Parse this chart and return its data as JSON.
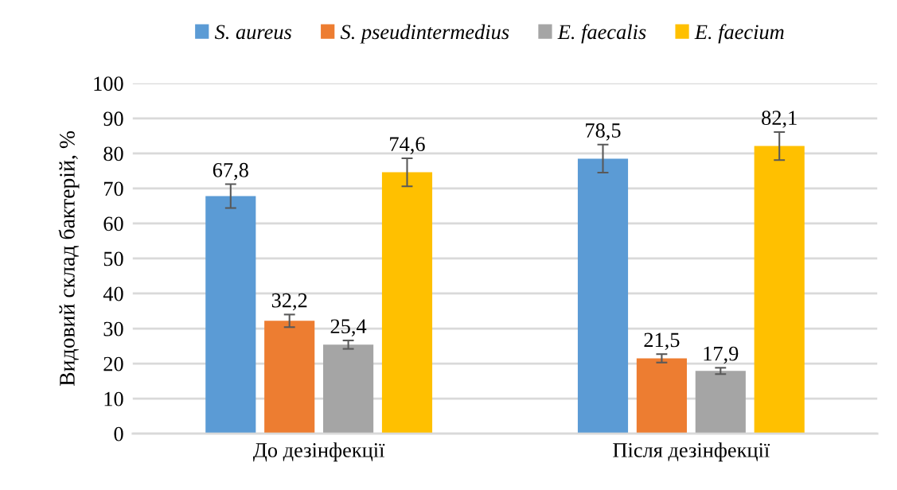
{
  "chart_data": {
    "type": "bar",
    "ylabel": "Видовий склад бактерій, %",
    "categories": [
      "До дезінфекції",
      "Після дезінфекції"
    ],
    "series": [
      {
        "name": "S. aureus",
        "color": "#5b9bd5",
        "values": [
          67.8,
          78.5
        ],
        "errors": [
          3.4,
          4
        ],
        "value_labels": [
          "67,8",
          "78,5"
        ]
      },
      {
        "name": "S. pseudintermedius",
        "color": "#ed7d31",
        "values": [
          32.2,
          21.5
        ],
        "errors": [
          1.8,
          1.2
        ],
        "value_labels": [
          "32,2",
          "21,5"
        ]
      },
      {
        "name": "E. faecalis",
        "color": "#a5a5a5",
        "values": [
          25.4,
          17.9
        ],
        "errors": [
          1.2,
          0.9
        ],
        "value_labels": [
          "25,4",
          "17,9"
        ]
      },
      {
        "name": "E. faecium",
        "color": "#ffc000",
        "values": [
          74.6,
          82.1
        ],
        "errors": [
          4,
          4
        ],
        "value_labels": [
          "74,6",
          "82,1"
        ]
      }
    ],
    "ylim": [
      0,
      100
    ],
    "yticks": [
      0,
      10,
      20,
      30,
      40,
      50,
      60,
      70,
      80,
      90,
      100
    ],
    "grid": "y",
    "legend": "top"
  }
}
